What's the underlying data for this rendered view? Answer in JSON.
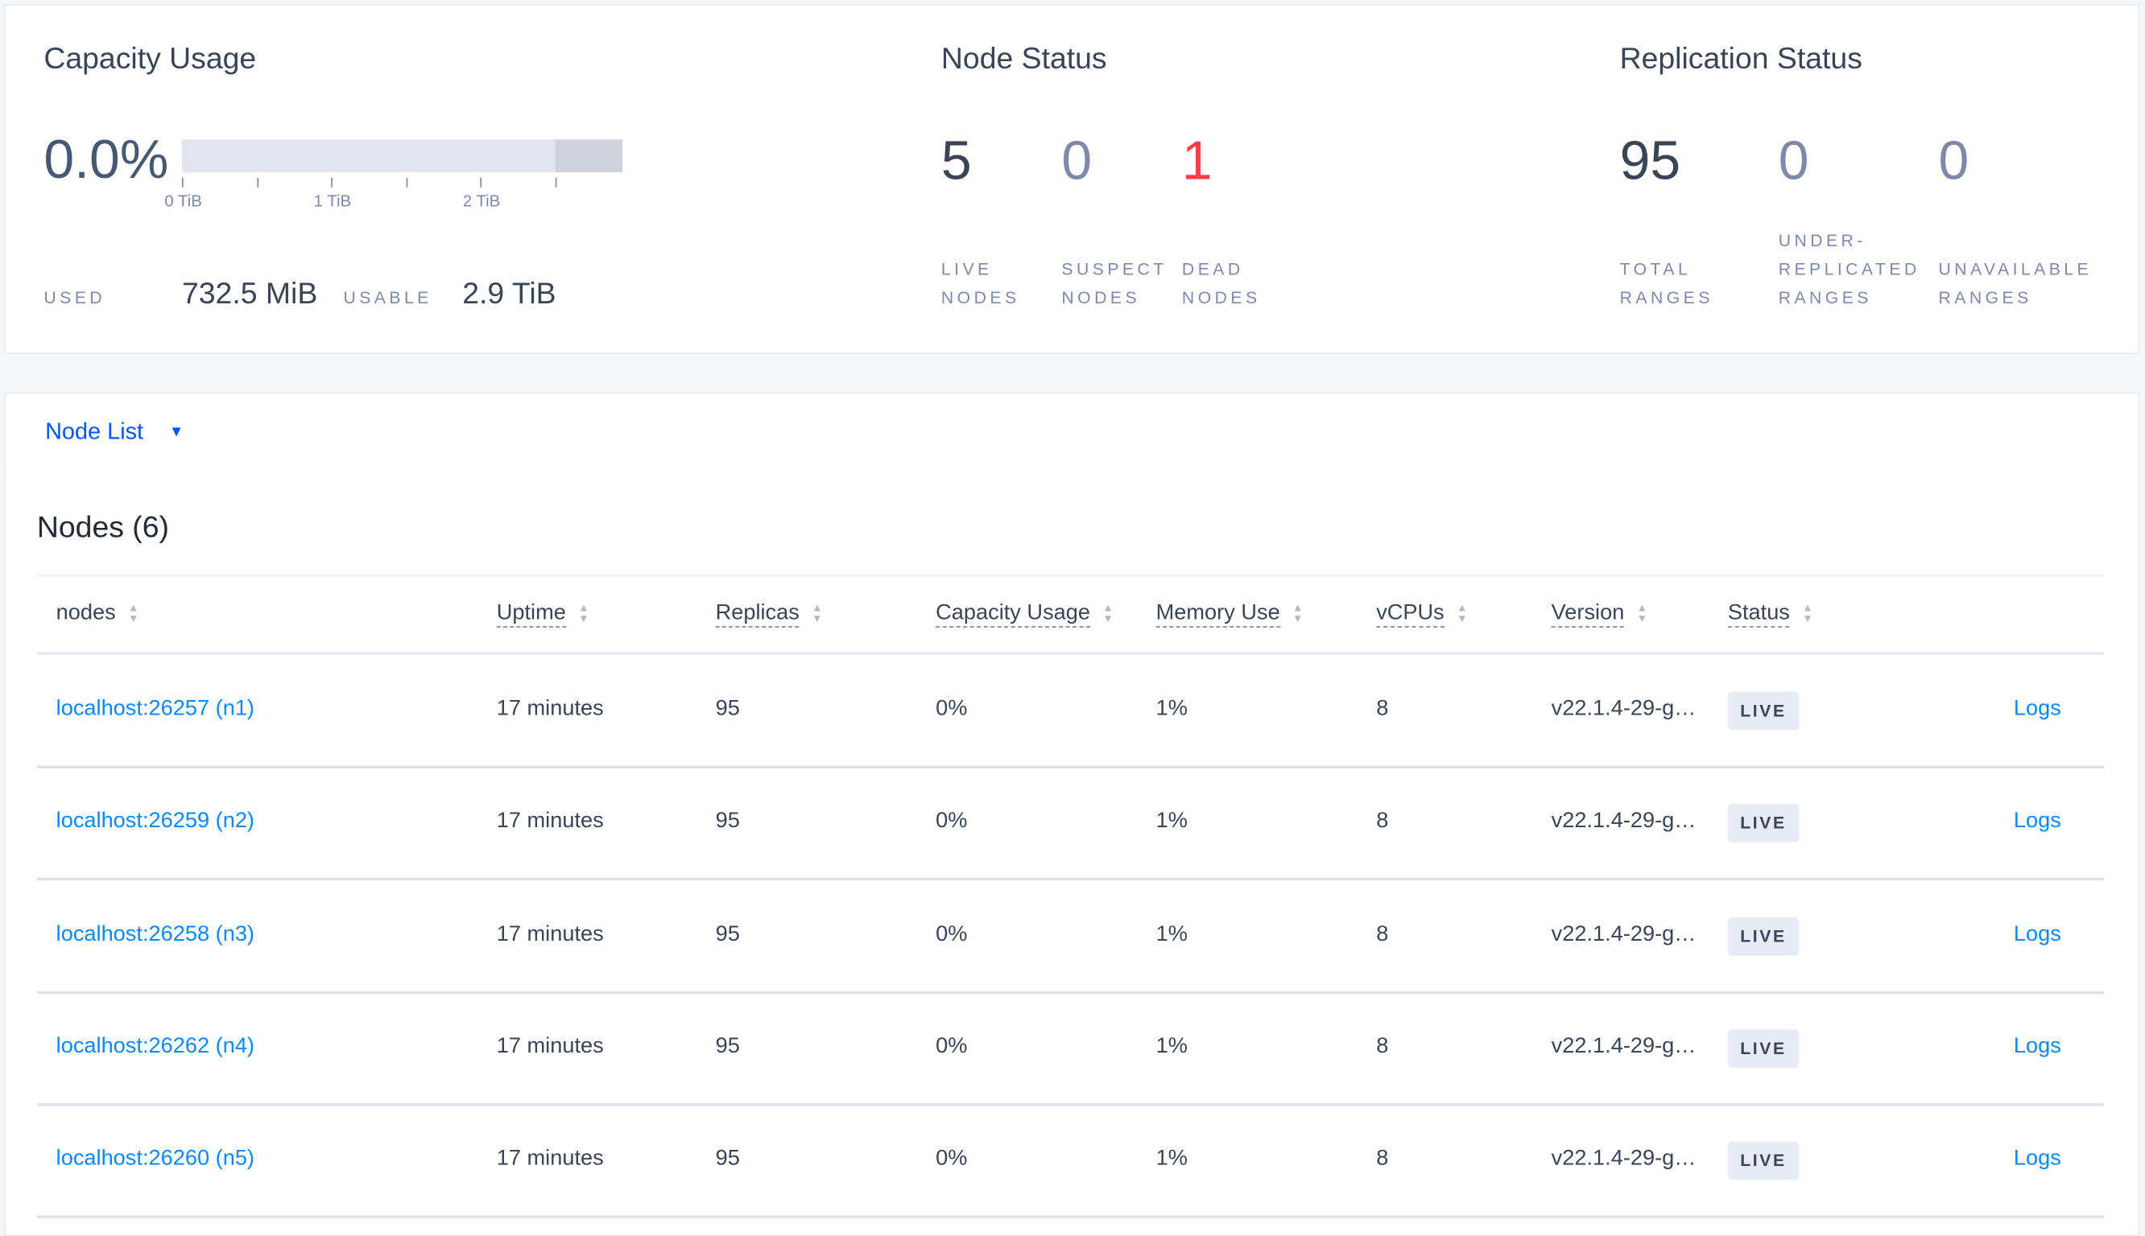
{
  "capacity": {
    "title": "Capacity Usage",
    "percent": "0.0%",
    "used_fraction": 0.0,
    "axis_ticks": [
      "0 TiB",
      "1 TiB",
      "2 TiB"
    ],
    "used_label": "USED",
    "used_value": "732.5 MiB",
    "usable_label": "USABLE",
    "usable_value": "2.9 TiB"
  },
  "node_status": {
    "title": "Node Status",
    "live": {
      "value": "5",
      "label1": "LIVE",
      "label2": "NODES"
    },
    "suspect": {
      "value": "0",
      "label1": "SUSPECT",
      "label2": "NODES"
    },
    "dead": {
      "value": "1",
      "label1": "DEAD",
      "label2": "NODES",
      "color": "#ff3b4e"
    }
  },
  "replication_status": {
    "title": "Replication Status",
    "total": {
      "value": "95",
      "label1": "TOTAL",
      "label2": "RANGES"
    },
    "under": {
      "value": "0",
      "label0": "UNDER-",
      "label1": "REPLICATED",
      "label2": "RANGES"
    },
    "unavailable": {
      "value": "0",
      "label1": "UNAVAILABLE",
      "label2": "RANGES"
    }
  },
  "view_selector": {
    "label": "Node List",
    "icon": "caret-down-icon"
  },
  "nodes_table": {
    "title": "Nodes (6)",
    "columns": [
      "nodes",
      "Uptime",
      "Replicas",
      "Capacity Usage",
      "Memory Use",
      "vCPUs",
      "Version",
      "Status"
    ],
    "rows": [
      {
        "node": "localhost:26257 (n1)",
        "uptime": "17 minutes",
        "replicas": "95",
        "capacity": "0%",
        "memory": "1%",
        "vcpus": "8",
        "version": "v22.1.4-29-g…",
        "status": "LIVE",
        "logs": "Logs"
      },
      {
        "node": "localhost:26259 (n2)",
        "uptime": "17 minutes",
        "replicas": "95",
        "capacity": "0%",
        "memory": "1%",
        "vcpus": "8",
        "version": "v22.1.4-29-g…",
        "status": "LIVE",
        "logs": "Logs"
      },
      {
        "node": "localhost:26258 (n3)",
        "uptime": "17 minutes",
        "replicas": "95",
        "capacity": "0%",
        "memory": "1%",
        "vcpus": "8",
        "version": "v22.1.4-29-g…",
        "status": "LIVE",
        "logs": "Logs"
      },
      {
        "node": "localhost:26262 (n4)",
        "uptime": "17 minutes",
        "replicas": "95",
        "capacity": "0%",
        "memory": "1%",
        "vcpus": "8",
        "version": "v22.1.4-29-g…",
        "status": "LIVE",
        "logs": "Logs"
      },
      {
        "node": "localhost:26260 (n5)",
        "uptime": "17 minutes",
        "replicas": "95",
        "capacity": "0%",
        "memory": "1%",
        "vcpus": "8",
        "version": "v22.1.4-29-g…",
        "status": "LIVE",
        "logs": "Logs"
      }
    ]
  }
}
